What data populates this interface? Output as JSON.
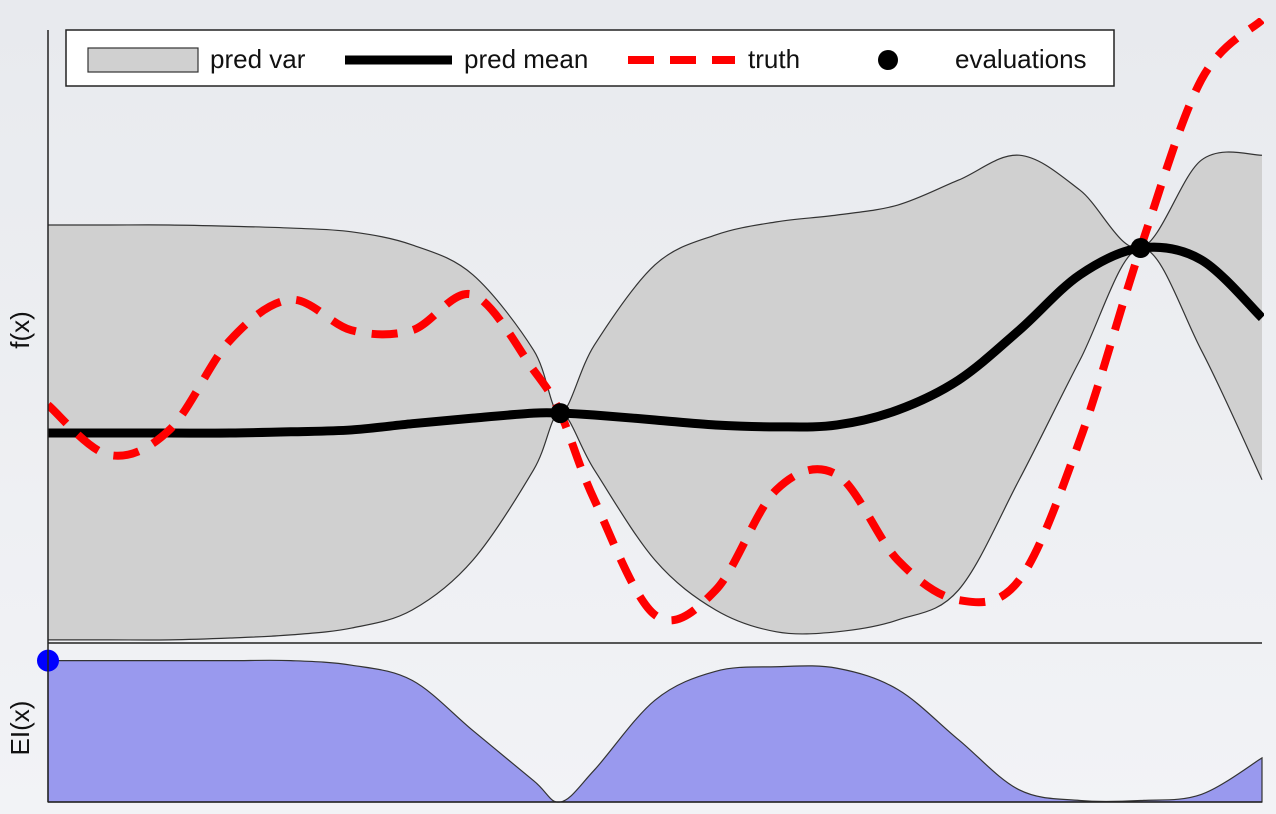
{
  "chart_data": [
    {
      "type": "line",
      "ylabel": "f(x)",
      "xlim": [
        0,
        1
      ],
      "ylim": [
        0,
        10
      ],
      "legend": "top",
      "x": [
        0,
        0.05,
        0.1,
        0.15,
        0.2,
        0.25,
        0.3,
        0.35,
        0.4,
        0.422,
        0.45,
        0.5,
        0.55,
        0.6,
        0.65,
        0.7,
        0.75,
        0.8,
        0.85,
        0.9,
        0.95,
        1
      ],
      "series": [
        {
          "name": "pred var",
          "style": "band",
          "color": "#d0d0d0",
          "upper": [
            6.71,
            6.71,
            6.71,
            6.69,
            6.66,
            6.6,
            6.39,
            5.91,
            4.7,
            3.69,
            4.78,
            6.07,
            6.55,
            6.76,
            6.87,
            7.03,
            7.43,
            7.83,
            7.27,
            6.34,
            7.75,
            7.83
          ],
          "lower": [
            0.05,
            0.05,
            0.05,
            0.08,
            0.13,
            0.24,
            0.53,
            1.33,
            2.78,
            3.69,
            2.78,
            1.33,
            0.53,
            0.18,
            0.18,
            0.37,
            0.85,
            2.62,
            4.54,
            6.34,
            4.7,
            2.62
          ]
        },
        {
          "name": "pred mean",
          "style": "solid",
          "color": "#000000",
          "values": [
            3.37,
            3.37,
            3.37,
            3.37,
            3.39,
            3.42,
            3.52,
            3.61,
            3.69,
            3.69,
            3.66,
            3.58,
            3.5,
            3.47,
            3.5,
            3.74,
            4.22,
            5.02,
            5.91,
            6.34,
            6.15,
            5.22
          ]
        },
        {
          "name": "truth",
          "style": "dashed",
          "color": "#ff0000",
          "values": [
            3.82,
            3.02,
            3.42,
            4.86,
            5.51,
            5.02,
            5.02,
            5.59,
            4.38,
            3.69,
            2.3,
            0.45,
            0.85,
            2.46,
            2.7,
            1.33,
            0.69,
            1.01,
            3.26,
            6.34,
            9.04,
            10
          ]
        },
        {
          "name": "evaluations",
          "style": "markers",
          "color": "#000000",
          "x": [
            0.422,
            0.9
          ],
          "values": [
            3.69,
            6.34
          ]
        }
      ]
    },
    {
      "type": "area",
      "ylabel": "EI(x)",
      "xlim": [
        0,
        1
      ],
      "ylim": [
        0,
        1
      ],
      "color": "#9999ee",
      "x": [
        0,
        0.05,
        0.1,
        0.15,
        0.2,
        0.25,
        0.3,
        0.35,
        0.4,
        0.422,
        0.45,
        0.5,
        0.55,
        0.6,
        0.65,
        0.7,
        0.75,
        0.8,
        0.85,
        0.9,
        0.95,
        1
      ],
      "values": [
        0.93,
        0.93,
        0.93,
        0.93,
        0.93,
        0.9,
        0.8,
        0.47,
        0.14,
        0,
        0.21,
        0.67,
        0.86,
        0.89,
        0.88,
        0.74,
        0.41,
        0.08,
        0.01,
        0.01,
        0.05,
        0.29
      ],
      "points": {
        "color": "#0000ff",
        "x": [
          0
        ],
        "values": [
          0.93
        ]
      }
    }
  ]
}
